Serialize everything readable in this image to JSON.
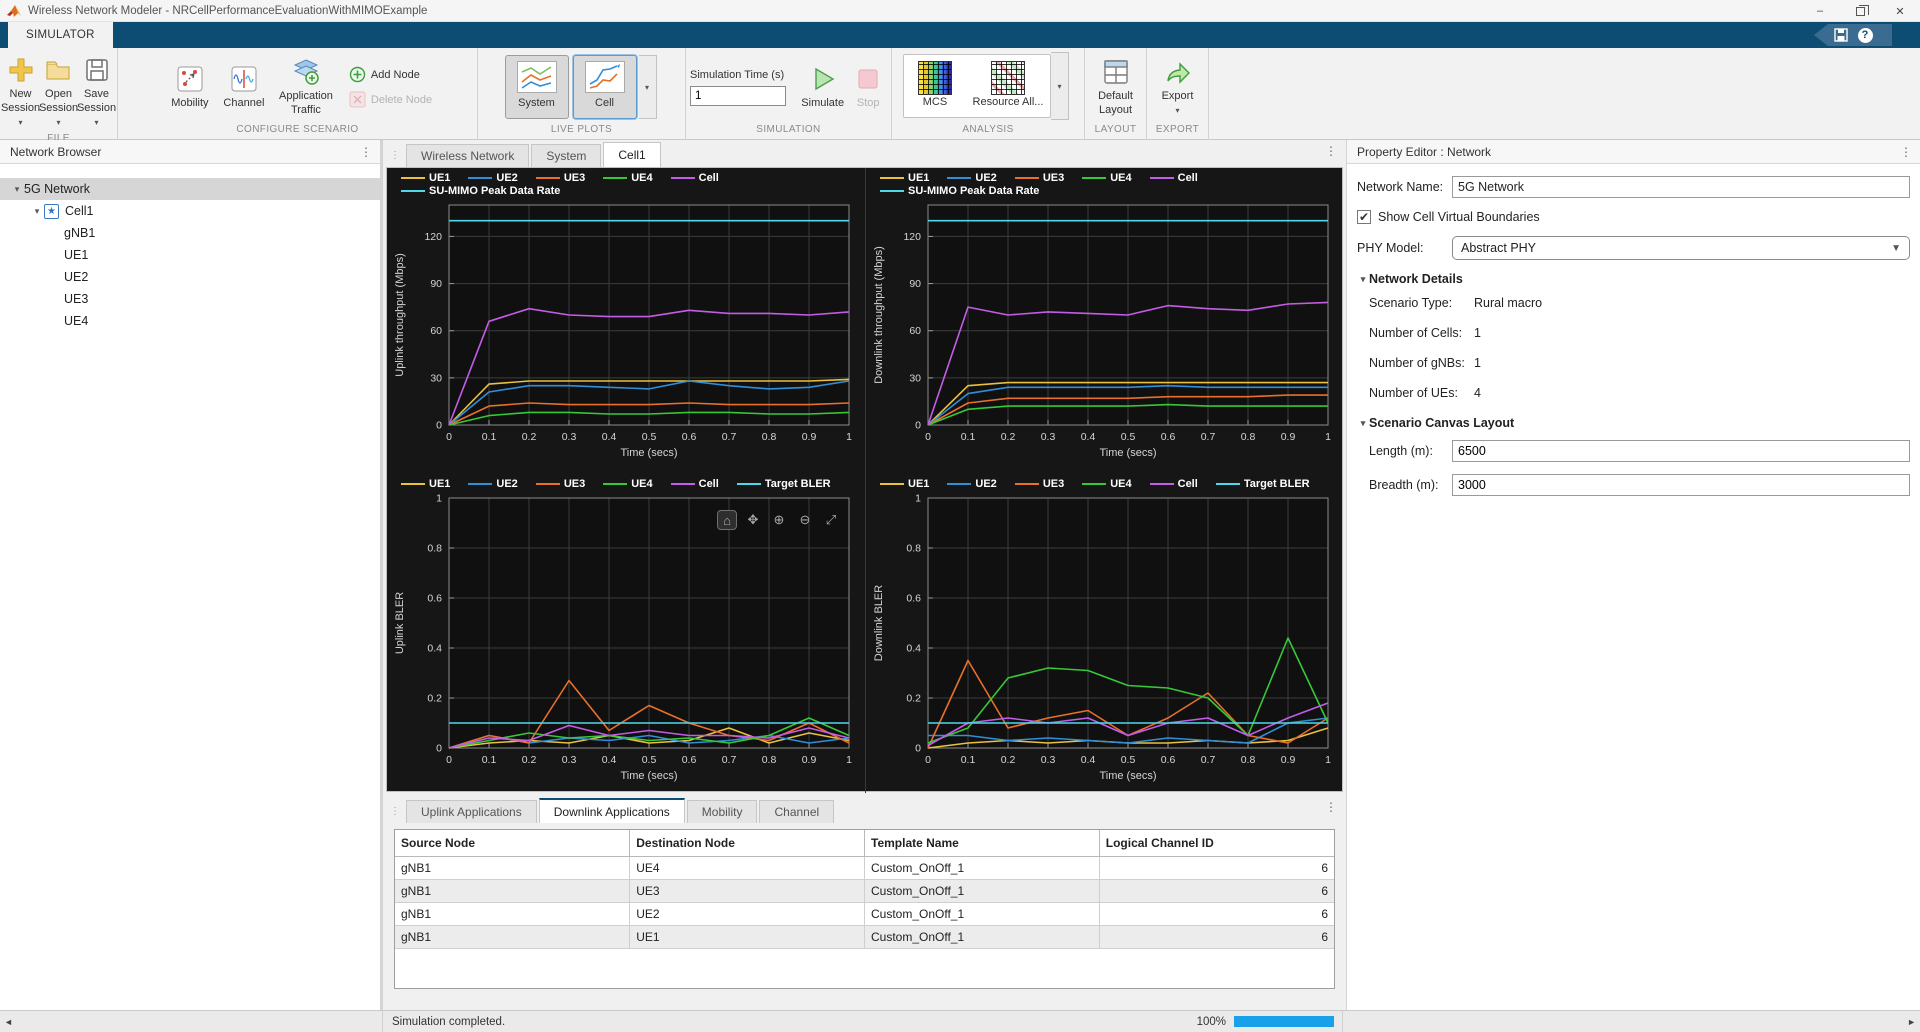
{
  "window": {
    "title": "Wireless Network Modeler - NRCellPerformanceEvaluationWithMIMOExample",
    "controls": {
      "minimize": "–",
      "restore": "",
      "close": "✕"
    }
  },
  "ribbon": {
    "tab_label": "SIMULATOR",
    "file": {
      "label": "FILE",
      "new_session": "New Session",
      "open_session": "Open Session",
      "save_session": "Save Session"
    },
    "configure": {
      "label": "CONFIGURE SCENARIO",
      "mobility": "Mobility",
      "channel": "Channel",
      "app_traffic": "Application Traffic",
      "add_node": "Add Node",
      "delete_node": "Delete Node"
    },
    "live_plots": {
      "label": "LIVE PLOTS",
      "system": "System",
      "cell": "Cell"
    },
    "simulation": {
      "label": "SIMULATION",
      "sim_time_label": "Simulation Time (s)",
      "sim_time_value": "1",
      "simulate": "Simulate",
      "stop": "Stop"
    },
    "analysis": {
      "label": "ANALYSIS",
      "mcs": "MCS",
      "resource": "Resource All..."
    },
    "layout": {
      "label": "LAYOUT",
      "default_layout": "Default Layout"
    },
    "export": {
      "label": "EXPORT",
      "export": "Export"
    }
  },
  "sidebar": {
    "title": "Network Browser",
    "tree": [
      {
        "label": "5G Network",
        "depth": 0,
        "expanded": true,
        "selected": true
      },
      {
        "label": "Cell1",
        "depth": 1,
        "expanded": true,
        "star": true
      },
      {
        "label": "gNB1",
        "depth": 2
      },
      {
        "label": "UE1",
        "depth": 2
      },
      {
        "label": "UE2",
        "depth": 2
      },
      {
        "label": "UE3",
        "depth": 2
      },
      {
        "label": "UE4",
        "depth": 2
      }
    ]
  },
  "center": {
    "tabs": [
      {
        "label": "Wireless Network",
        "active": false
      },
      {
        "label": "System",
        "active": false
      },
      {
        "label": "Cell1",
        "active": true
      }
    ],
    "bottom_tabs": [
      {
        "label": "Uplink Applications",
        "active": false
      },
      {
        "label": "Downlink Applications",
        "active": true
      },
      {
        "label": "Mobility",
        "active": false
      },
      {
        "label": "Channel",
        "active": false
      }
    ]
  },
  "table": {
    "columns": [
      {
        "label": "Source Node"
      },
      {
        "label": "Destination Node"
      },
      {
        "label": "Template Name"
      },
      {
        "label": "Logical Channel ID",
        "align": "right"
      }
    ],
    "rows": [
      [
        "gNB1",
        "UE4",
        "Custom_OnOff_1",
        "6"
      ],
      [
        "gNB1",
        "UE3",
        "Custom_OnOff_1",
        "6"
      ],
      [
        "gNB1",
        "UE2",
        "Custom_OnOff_1",
        "6"
      ],
      [
        "gNB1",
        "UE1",
        "Custom_OnOff_1",
        "6"
      ]
    ]
  },
  "property_editor": {
    "title": "Property Editor : Network",
    "network_name_label": "Network Name:",
    "network_name_value": "5G Network",
    "show_boundaries_label": "Show Cell Virtual Boundaries",
    "show_boundaries_checked": "✔",
    "phy_model_label": "PHY Model:",
    "phy_model_value": "Abstract PHY",
    "network_details_title": "Network Details",
    "details": [
      {
        "label": "Scenario Type:",
        "value": "Rural macro"
      },
      {
        "label": "Number of Cells:",
        "value": "1"
      },
      {
        "label": "Number of gNBs:",
        "value": "1"
      },
      {
        "label": "Number of UEs:",
        "value": "4"
      }
    ],
    "canvas_title": "Scenario Canvas Layout",
    "canvas_fields": [
      {
        "label": "Length (m):",
        "value": "6500"
      },
      {
        "label": "Breadth (m):",
        "value": "3000"
      }
    ]
  },
  "status": {
    "message": "Simulation completed.",
    "progress_label": "100%",
    "progress_value": 100
  },
  "colors": {
    "ribbon_blue": "#0d4d74",
    "progress_blue": "#18a0e8",
    "ue1": "#e8c13e",
    "ue2": "#2f8fd8",
    "ue3": "#e8702a",
    "ue4": "#37c837",
    "cell": "#c55ce8",
    "reference": "#4fd8e8"
  },
  "chart_data": [
    {
      "id": "ul-throughput",
      "type": "line",
      "position": "top-left",
      "xlabel": "Time (secs)",
      "ylabel": "Uplink throughput (Mbps)",
      "x": [
        0,
        0.1,
        0.2,
        0.3,
        0.4,
        0.5,
        0.6,
        0.7,
        0.8,
        0.9,
        1
      ],
      "xlim": [
        0,
        1
      ],
      "ylim": [
        0,
        140
      ],
      "yticks": [
        0,
        30,
        60,
        90,
        120
      ],
      "grid": true,
      "legend_position": "top",
      "toolbar": false,
      "series": [
        {
          "name": "UE1",
          "color": "#e8c13e",
          "values": [
            0,
            26,
            28,
            28,
            28,
            28,
            28,
            28,
            28,
            28,
            29
          ]
        },
        {
          "name": "UE2",
          "color": "#2f8fd8",
          "values": [
            0,
            21,
            25,
            25,
            24,
            23,
            28,
            25,
            23,
            24,
            28
          ]
        },
        {
          "name": "UE3",
          "color": "#e8702a",
          "values": [
            0,
            12,
            14,
            13,
            13,
            13,
            14,
            13,
            13,
            13,
            14
          ]
        },
        {
          "name": "UE4",
          "color": "#37c837",
          "values": [
            0,
            6,
            8,
            8,
            7,
            7,
            8,
            8,
            7,
            7,
            8
          ]
        },
        {
          "name": "Cell",
          "color": "#c55ce8",
          "values": [
            0,
            66,
            74,
            70,
            69,
            69,
            73,
            71,
            71,
            70,
            72
          ]
        },
        {
          "name": "SU-MIMO Peak Data Rate",
          "color": "#4fd8e8",
          "values": [
            130,
            130,
            130,
            130,
            130,
            130,
            130,
            130,
            130,
            130,
            130
          ]
        }
      ]
    },
    {
      "id": "dl-throughput",
      "type": "line",
      "position": "top-right",
      "xlabel": "Time (secs)",
      "ylabel": "Downlink throughput (Mbps)",
      "x": [
        0,
        0.1,
        0.2,
        0.3,
        0.4,
        0.5,
        0.6,
        0.7,
        0.8,
        0.9,
        1
      ],
      "xlim": [
        0,
        1
      ],
      "ylim": [
        0,
        140
      ],
      "yticks": [
        0,
        30,
        60,
        90,
        120
      ],
      "grid": true,
      "legend_position": "top",
      "toolbar": false,
      "series": [
        {
          "name": "UE1",
          "color": "#e8c13e",
          "values": [
            0,
            25,
            27,
            27,
            27,
            27,
            27,
            27,
            27,
            27,
            27
          ]
        },
        {
          "name": "UE2",
          "color": "#2f8fd8",
          "values": [
            0,
            20,
            24,
            24,
            24,
            24,
            25,
            24,
            24,
            24,
            24
          ]
        },
        {
          "name": "UE3",
          "color": "#e8702a",
          "values": [
            0,
            14,
            17,
            17,
            17,
            17,
            18,
            18,
            18,
            19,
            19
          ]
        },
        {
          "name": "UE4",
          "color": "#37c837",
          "values": [
            0,
            10,
            12,
            12,
            12,
            12,
            13,
            12,
            12,
            12,
            12
          ]
        },
        {
          "name": "Cell",
          "color": "#c55ce8",
          "values": [
            0,
            75,
            70,
            72,
            71,
            70,
            76,
            74,
            73,
            77,
            78
          ]
        },
        {
          "name": "SU-MIMO Peak Data Rate",
          "color": "#4fd8e8",
          "values": [
            130,
            130,
            130,
            130,
            130,
            130,
            130,
            130,
            130,
            130,
            130
          ]
        }
      ]
    },
    {
      "id": "ul-bler",
      "type": "line",
      "position": "bottom-left",
      "xlabel": "Time (secs)",
      "ylabel": "Uplink BLER",
      "x": [
        0,
        0.1,
        0.2,
        0.3,
        0.4,
        0.5,
        0.6,
        0.7,
        0.8,
        0.9,
        1
      ],
      "xlim": [
        0,
        1
      ],
      "ylim": [
        0,
        1
      ],
      "yticks": [
        0,
        0.2,
        0.4,
        0.6,
        0.8,
        1
      ],
      "grid": true,
      "legend_position": "top",
      "toolbar": true,
      "series": [
        {
          "name": "UE1",
          "color": "#e8c13e",
          "values": [
            0,
            0.02,
            0.03,
            0.02,
            0.05,
            0.02,
            0.03,
            0.08,
            0.02,
            0.06,
            0.03
          ]
        },
        {
          "name": "UE2",
          "color": "#2f8fd8",
          "values": [
            0,
            0.05,
            0.02,
            0.04,
            0.03,
            0.05,
            0.02,
            0.03,
            0.05,
            0.02,
            0.04
          ]
        },
        {
          "name": "UE3",
          "color": "#e8702a",
          "values": [
            0,
            0.05,
            0.02,
            0.27,
            0.07,
            0.17,
            0.1,
            0.05,
            0.03,
            0.1,
            0.02
          ]
        },
        {
          "name": "UE4",
          "color": "#37c837",
          "values": [
            0,
            0.03,
            0.06,
            0.04,
            0.05,
            0.03,
            0.04,
            0.02,
            0.05,
            0.12,
            0.05
          ]
        },
        {
          "name": "Cell",
          "color": "#c55ce8",
          "values": [
            0,
            0.04,
            0.03,
            0.09,
            0.05,
            0.07,
            0.05,
            0.05,
            0.04,
            0.08,
            0.04
          ]
        },
        {
          "name": "Target BLER",
          "color": "#4fd8e8",
          "values": [
            0.1,
            0.1,
            0.1,
            0.1,
            0.1,
            0.1,
            0.1,
            0.1,
            0.1,
            0.1,
            0.1
          ]
        }
      ]
    },
    {
      "id": "dl-bler",
      "type": "line",
      "position": "bottom-right",
      "xlabel": "Time (secs)",
      "ylabel": "Downlink BLER",
      "x": [
        0,
        0.1,
        0.2,
        0.3,
        0.4,
        0.5,
        0.6,
        0.7,
        0.8,
        0.9,
        1
      ],
      "xlim": [
        0,
        1
      ],
      "ylim": [
        0,
        1
      ],
      "yticks": [
        0,
        0.2,
        0.4,
        0.6,
        0.8,
        1
      ],
      "grid": true,
      "legend_position": "top",
      "toolbar": false,
      "series": [
        {
          "name": "UE1",
          "color": "#e8c13e",
          "values": [
            0,
            0.02,
            0.03,
            0.02,
            0.03,
            0.02,
            0.02,
            0.03,
            0.02,
            0.03,
            0.08
          ]
        },
        {
          "name": "UE2",
          "color": "#2f8fd8",
          "values": [
            0.05,
            0.05,
            0.03,
            0.04,
            0.03,
            0.02,
            0.04,
            0.03,
            0.02,
            0.1,
            0.12
          ]
        },
        {
          "name": "UE3",
          "color": "#e8702a",
          "values": [
            0,
            0.35,
            0.08,
            0.12,
            0.15,
            0.05,
            0.12,
            0.22,
            0.05,
            0.02,
            0.12
          ]
        },
        {
          "name": "UE4",
          "color": "#37c837",
          "values": [
            0.02,
            0.08,
            0.28,
            0.32,
            0.31,
            0.25,
            0.24,
            0.2,
            0.05,
            0.44,
            0.1
          ]
        },
        {
          "name": "Cell",
          "color": "#c55ce8",
          "values": [
            0.01,
            0.1,
            0.12,
            0.1,
            0.12,
            0.05,
            0.1,
            0.12,
            0.05,
            0.12,
            0.18
          ]
        },
        {
          "name": "Target BLER",
          "color": "#4fd8e8",
          "values": [
            0.1,
            0.1,
            0.1,
            0.1,
            0.1,
            0.1,
            0.1,
            0.1,
            0.1,
            0.1,
            0.1
          ]
        }
      ]
    }
  ]
}
